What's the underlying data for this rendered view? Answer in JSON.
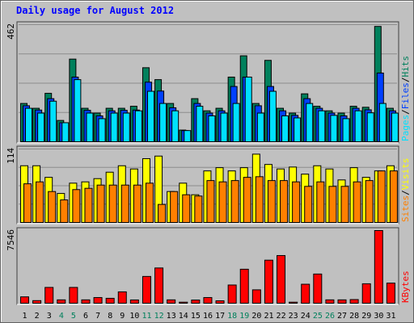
{
  "title": "Daily usage for August 2012",
  "chart_data": {
    "type": "bar",
    "title": "Daily usage for August 2012",
    "categories": [
      "1",
      "2",
      "3",
      "4",
      "5",
      "6",
      "7",
      "8",
      "9",
      "10",
      "11",
      "12",
      "13",
      "14",
      "15",
      "16",
      "17",
      "18",
      "19",
      "20",
      "21",
      "22",
      "23",
      "24",
      "25",
      "26",
      "27",
      "28",
      "29",
      "30",
      "31"
    ],
    "weekend_days": [
      "4",
      "5",
      "11",
      "12",
      "18",
      "19",
      "25",
      "26"
    ],
    "colors": {
      "background": "#c0c0c0",
      "frame": "#606060",
      "title": "#0000ff",
      "weekday_tick": "#000000",
      "weekend_tick": "#00805c",
      "hits": "#00805c",
      "files": "#0040ff",
      "pages": "#00e0ff",
      "visits": "#ffff00",
      "sites": "#ff8000",
      "kbytes": "#ff0000"
    },
    "panels": [
      {
        "id": "hits-files-pages",
        "ymax": 462,
        "ymax_label": "462",
        "grid": true,
        "legend": [
          {
            "text": "Hits",
            "color": "#00805c"
          },
          {
            "text": "/",
            "color": "#000000"
          },
          {
            "text": "Files",
            "color": "#0040ff"
          },
          {
            "text": "/",
            "color": "#000000"
          },
          {
            "text": "Pages",
            "color": "#00e0ff"
          }
        ],
        "series": [
          {
            "name": "Hits",
            "color": "#00805c",
            "values": [
              151,
              132,
              191,
              84,
              326,
              132,
              113,
              132,
              132,
              140,
              292,
              245,
              151,
              46,
              170,
              122,
              132,
              255,
              339,
              151,
              321,
              132,
              113,
              189,
              140,
              122,
              113,
              140,
              136,
              455,
              132
            ]
          },
          {
            "name": "Files",
            "color": "#0040ff",
            "values": [
              142,
              125,
              170,
              75,
              255,
              124,
              102,
              122,
              124,
              125,
              235,
              200,
              134,
              44,
              151,
              113,
              122,
              218,
              255,
              142,
              218,
              122,
              104,
              170,
              132,
              113,
              102,
              132,
              126,
              271,
              122
            ]
          },
          {
            "name": "Pages",
            "color": "#00e0ff",
            "values": [
              132,
              113,
              160,
              75,
              245,
              113,
              91,
              113,
              113,
              122,
              199,
              151,
              122,
              44,
              140,
              102,
              113,
              151,
              255,
              113,
              199,
              102,
              94,
              151,
              122,
              104,
              91,
              122,
              114,
              151,
              113
            ]
          }
        ]
      },
      {
        "id": "visits-sites",
        "ymax": 114,
        "ymax_label": "114",
        "grid": true,
        "legend": [
          {
            "text": "Visits",
            "color": "#ffff00"
          },
          {
            "text": "/",
            "color": "#000000"
          },
          {
            "text": "Sites",
            "color": "#ff8000"
          }
        ],
        "series": [
          {
            "name": "Visits",
            "color": "#ffff00",
            "values": [
              88,
              88,
              70,
              45,
              61,
              63,
              68,
              78,
              88,
              83,
              99,
              103,
              48,
              61,
              43,
              80,
              85,
              80,
              85,
              106,
              90,
              83,
              86,
              75,
              88,
              83,
              66,
              85,
              70,
              80,
              88
            ]
          },
          {
            "name": "Sites",
            "color": "#ff8000",
            "values": [
              60,
              63,
              48,
              35,
              51,
              53,
              58,
              58,
              58,
              58,
              61,
              28,
              48,
              43,
              41,
              65,
              63,
              65,
              70,
              71,
              65,
              65,
              63,
              56,
              63,
              56,
              56,
              63,
              65,
              80,
              80
            ]
          }
        ]
      },
      {
        "id": "kbytes",
        "ymax": 7546,
        "ymax_label": "7546",
        "grid": false,
        "legend": [
          {
            "text": "KBytes",
            "color": "#ff0000"
          }
        ],
        "series": [
          {
            "name": "KBytes",
            "color": "#ff0000",
            "values": [
              660,
              270,
              1640,
              350,
              1640,
              350,
              590,
              510,
              1180,
              340,
              2780,
              3660,
              350,
              110,
              330,
              590,
              250,
              1890,
              3530,
              1390,
              4470,
              4950,
              110,
              1970,
              3030,
              350,
              350,
              380,
              2020,
              7546,
              2090
            ]
          }
        ]
      }
    ]
  }
}
